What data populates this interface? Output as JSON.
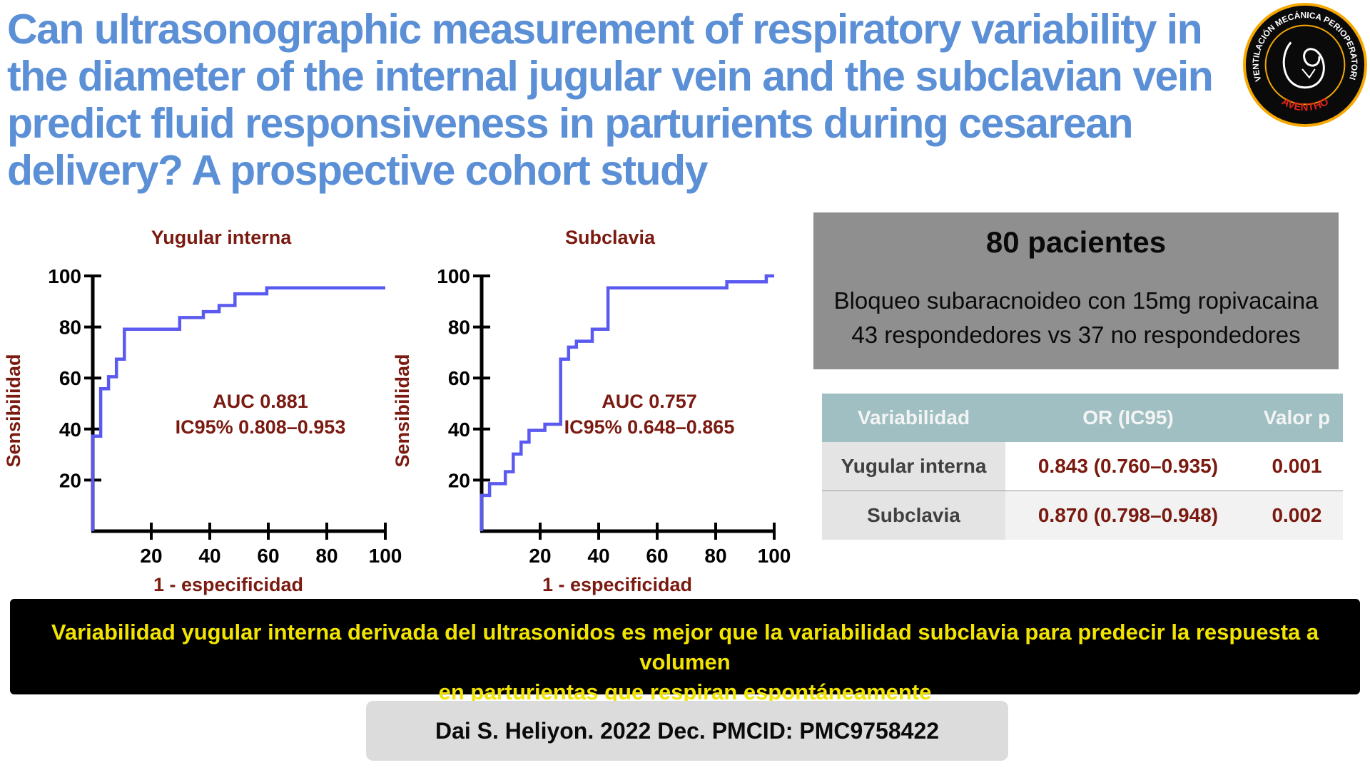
{
  "title": "Can ultrasonographic measurement of respiratory variability in the diameter of the internal jugular vein and the subclavian vein predict fluid responsiveness in parturients during cesarean delivery? A prospective cohort study",
  "logo": {
    "ring_text": "VENTILACIÓN MECÁNICA PERIOPERATORIA",
    "bottom_text": "AVENTHO"
  },
  "colors": {
    "title": "#5b8fd6",
    "curve": "#5a5af0",
    "chart_text": "#7a1a10",
    "banner_text": "#f2e400"
  },
  "chart_data": [
    {
      "type": "line",
      "title": "Yugular interna",
      "xlabel": "1 - especificidad",
      "ylabel": "Sensibilidad",
      "xlim": [
        0,
        100
      ],
      "ylim": [
        0,
        100
      ],
      "xticks": [
        20,
        40,
        60,
        80,
        100
      ],
      "yticks": [
        20,
        40,
        60,
        80,
        100
      ],
      "annotation": [
        "AUC 0.881",
        "IC95% 0.808–0.953"
      ],
      "series": [
        {
          "x": [
            0,
            0,
            2.7,
            2.7,
            5.4,
            5.4,
            8.1,
            8.1,
            10.8,
            10.8,
            13.5,
            13.5,
            29.7,
            29.7,
            37.8,
            37.8,
            43.2,
            43.2,
            48.6,
            48.6,
            59.5,
            59.5,
            100
          ],
          "y": [
            0,
            37.2,
            37.2,
            55.8,
            55.8,
            60.5,
            60.5,
            67.4,
            67.4,
            79.1,
            79.1,
            79.1,
            79.1,
            83.7,
            83.7,
            86.0,
            86.0,
            88.4,
            88.4,
            93.0,
            93.0,
            95.3,
            95.3
          ]
        }
      ]
    },
    {
      "type": "line",
      "title": "Subclavia",
      "xlabel": "1 - especificidad",
      "ylabel": "Sensibilidad",
      "xlim": [
        0,
        100
      ],
      "ylim": [
        0,
        100
      ],
      "xticks": [
        20,
        40,
        60,
        80,
        100
      ],
      "yticks": [
        20,
        40,
        60,
        80,
        100
      ],
      "annotation": [
        "AUC 0.757",
        "IC95% 0.648–0.865"
      ],
      "series": [
        {
          "x": [
            0,
            0,
            2.7,
            2.7,
            5.4,
            5.4,
            8.1,
            8.1,
            10.8,
            10.8,
            13.5,
            13.5,
            16.2,
            16.2,
            21.6,
            21.6,
            27.0,
            27.0,
            29.7,
            29.7,
            32.4,
            32.4,
            35.1,
            35.1,
            37.8,
            37.8,
            43.2,
            43.2,
            83.8,
            83.8,
            91.9,
            91.9,
            97.3,
            97.3,
            100
          ],
          "y": [
            0,
            14.0,
            14.0,
            18.6,
            18.6,
            18.6,
            18.6,
            23.3,
            23.3,
            30.2,
            30.2,
            34.9,
            34.9,
            39.5,
            39.5,
            41.9,
            41.9,
            67.4,
            67.4,
            72.1,
            72.1,
            74.4,
            74.4,
            74.4,
            74.4,
            79.1,
            79.1,
            95.3,
            95.3,
            97.7,
            97.7,
            97.7,
            97.7,
            100,
            100
          ]
        }
      ]
    }
  ],
  "stats": {
    "heading": "80 pacientes",
    "line1": "Bloqueo subaracnoideo con 15mg ropivacaina",
    "line2": "43 respondedores vs 37 no respondedores"
  },
  "table": {
    "headers": [
      "Variabilidad",
      "OR (IC95)",
      "Valor p"
    ],
    "rows": [
      [
        "Yugular interna",
        "0.843 (0.760–0.935)",
        "0.001"
      ],
      [
        "Subclavia",
        "0.870 (0.798–0.948)",
        "0.002"
      ]
    ]
  },
  "banner": {
    "line1": "Variabilidad yugular interna derivada del ultrasonidos es mejor que la variabilidad subclavia para predecir la respuesta a  volumen",
    "line2": "en parturientas que respiran espontáneamente"
  },
  "citation": "Dai S. Heliyon. 2022 Dec. PMCID: PMC9758422"
}
